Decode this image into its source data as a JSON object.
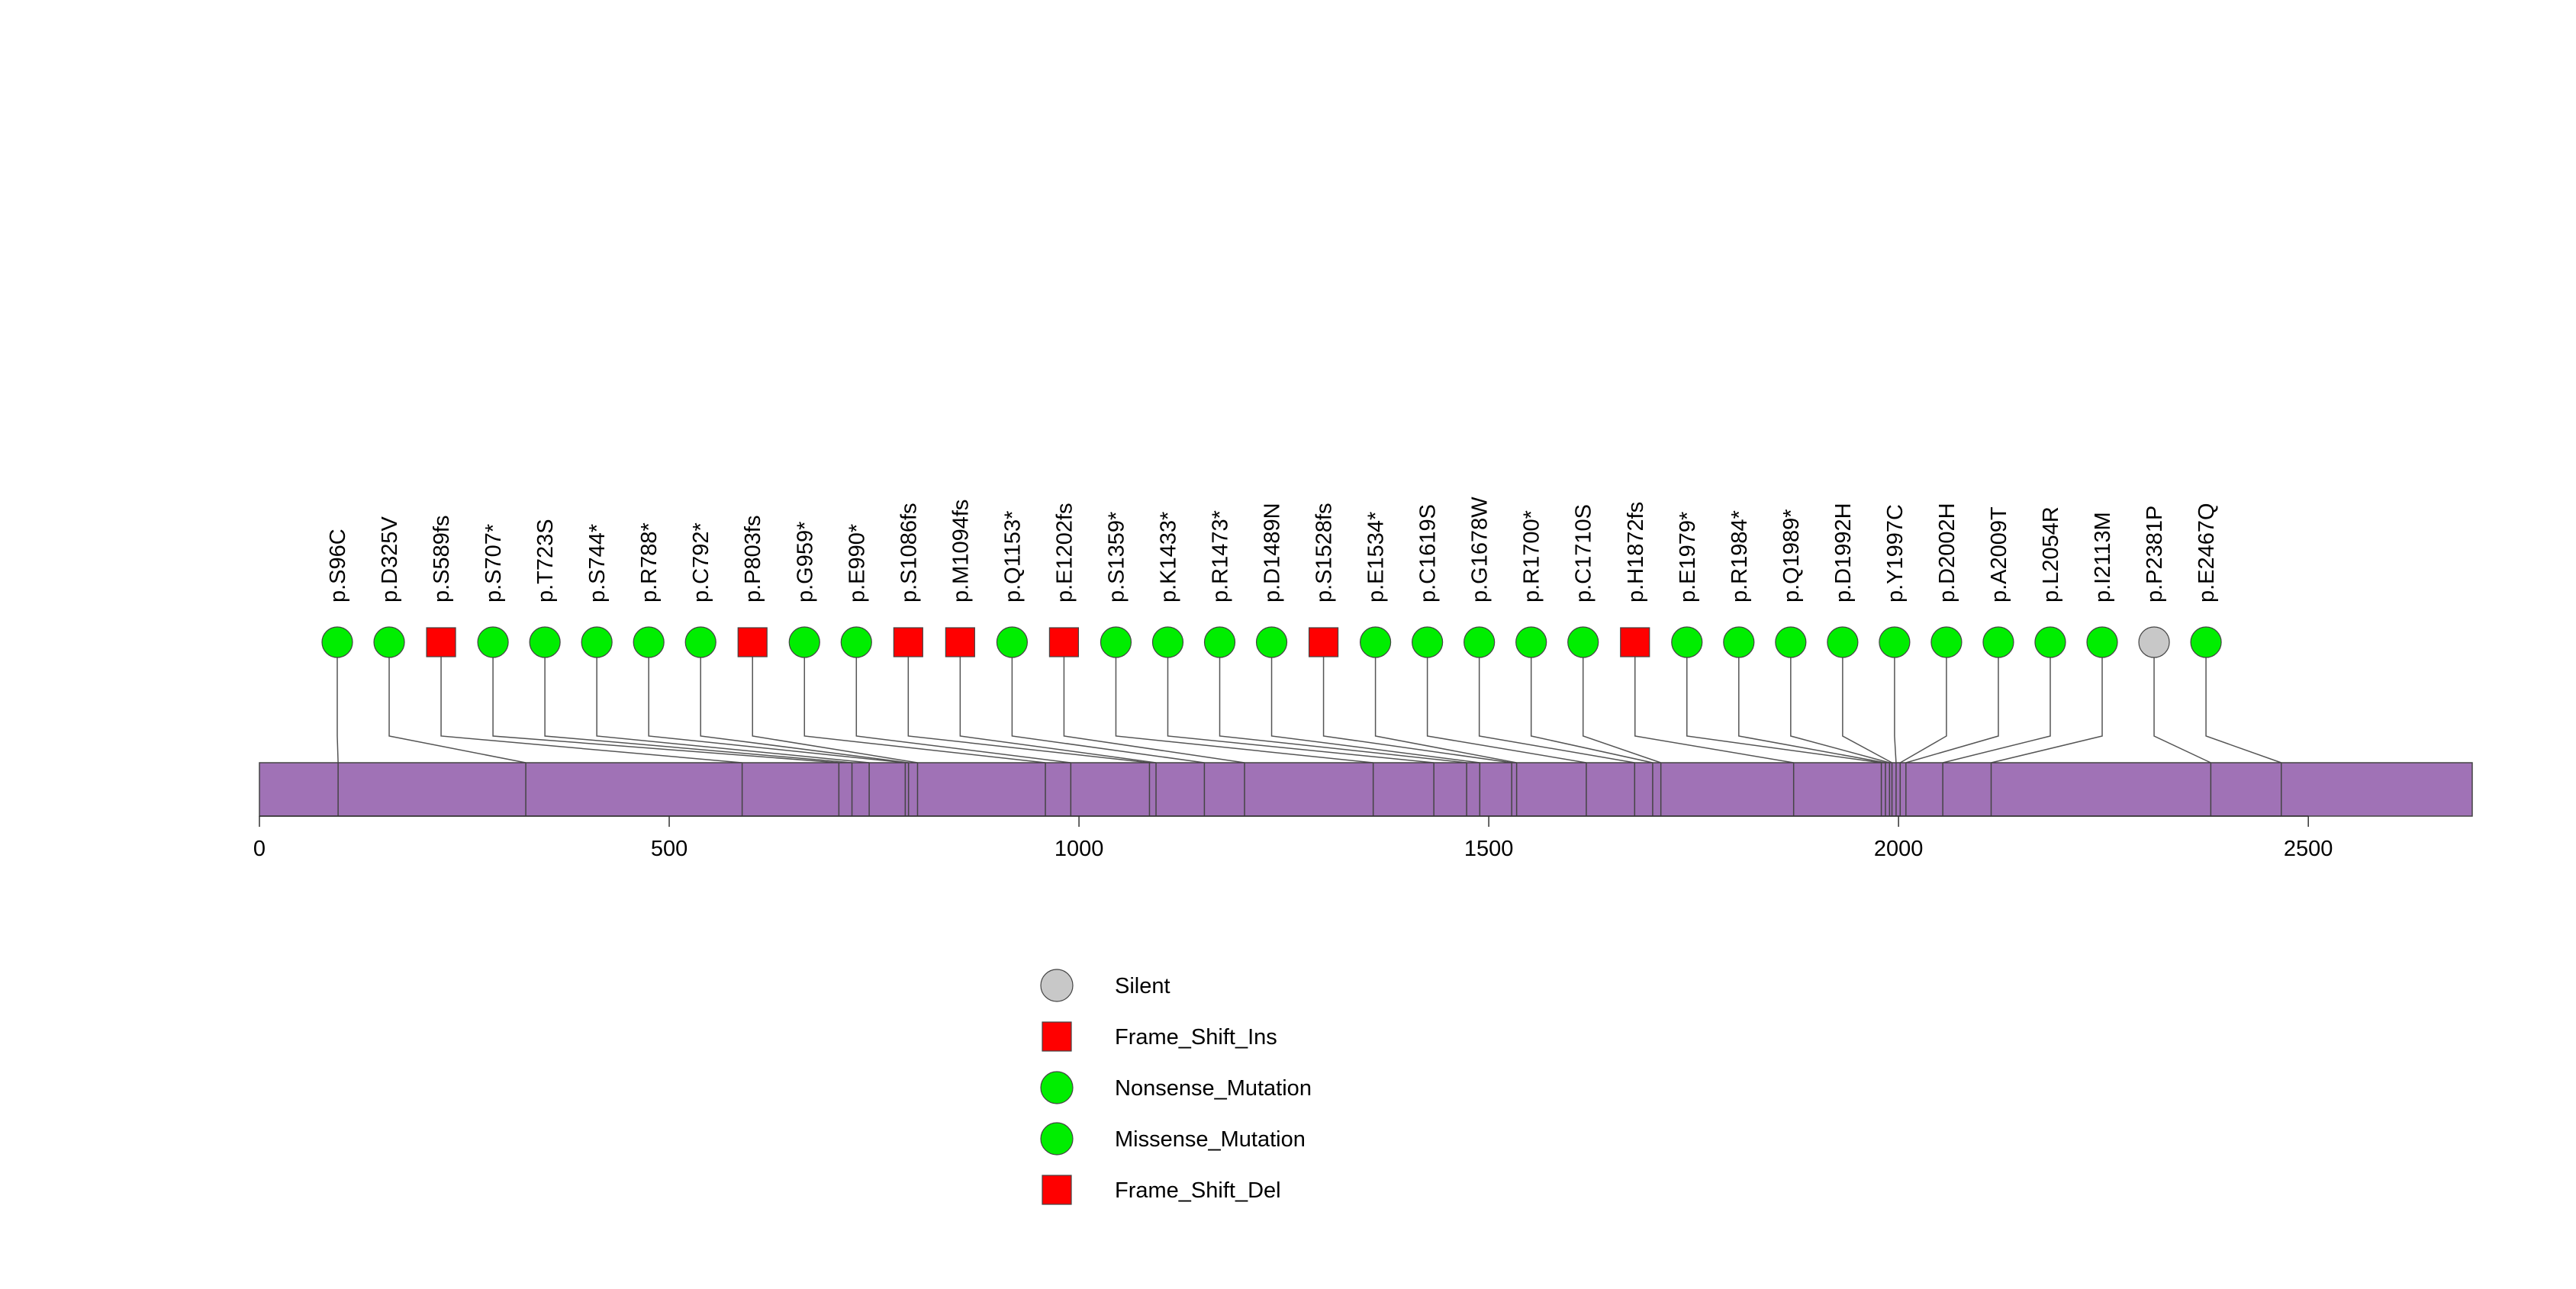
{
  "chart_data": {
    "type": "lollipop",
    "title": "",
    "xlabel": "",
    "ylabel": "",
    "xlim": [
      0,
      2700
    ],
    "ticks": [
      0,
      500,
      1000,
      1500,
      2000,
      2500
    ],
    "tick_labels": [
      "0",
      "500",
      "1000",
      "1500",
      "2000",
      "2500"
    ],
    "protein_length": 2700,
    "domain_color": "#a072b6",
    "legend": [
      {
        "label": "Silent",
        "shape": "circle",
        "color": "#c8c8c8"
      },
      {
        "label": "Frame_Shift_Ins",
        "shape": "square",
        "color": "#ff0000"
      },
      {
        "label": "Nonsense_Mutation",
        "shape": "circle",
        "color": "#00ee00"
      },
      {
        "label": "Missense_Mutation",
        "shape": "circle",
        "color": "#00ee00"
      },
      {
        "label": "Frame_Shift_Del",
        "shape": "square",
        "color": "#ff0000"
      }
    ],
    "mutations": [
      {
        "label": "p.S96C",
        "position": 96,
        "type": "Missense_Mutation"
      },
      {
        "label": "p.D325V",
        "position": 325,
        "type": "Missense_Mutation"
      },
      {
        "label": "p.S589fs",
        "position": 589,
        "type": "Frame_Shift_Del"
      },
      {
        "label": "p.S707*",
        "position": 707,
        "type": "Nonsense_Mutation"
      },
      {
        "label": "p.T723S",
        "position": 723,
        "type": "Missense_Mutation"
      },
      {
        "label": "p.S744*",
        "position": 744,
        "type": "Nonsense_Mutation"
      },
      {
        "label": "p.R788*",
        "position": 788,
        "type": "Nonsense_Mutation"
      },
      {
        "label": "p.C792*",
        "position": 792,
        "type": "Nonsense_Mutation"
      },
      {
        "label": "p.P803fs",
        "position": 803,
        "type": "Frame_Shift_Ins"
      },
      {
        "label": "p.G959*",
        "position": 959,
        "type": "Nonsense_Mutation"
      },
      {
        "label": "p.E990*",
        "position": 990,
        "type": "Nonsense_Mutation"
      },
      {
        "label": "p.S1086fs",
        "position": 1086,
        "type": "Frame_Shift_Del"
      },
      {
        "label": "p.M1094fs",
        "position": 1094,
        "type": "Frame_Shift_Del"
      },
      {
        "label": "p.Q1153*",
        "position": 1153,
        "type": "Nonsense_Mutation"
      },
      {
        "label": "p.E1202fs",
        "position": 1202,
        "type": "Frame_Shift_Del"
      },
      {
        "label": "p.S1359*",
        "position": 1359,
        "type": "Nonsense_Mutation"
      },
      {
        "label": "p.K1433*",
        "position": 1433,
        "type": "Nonsense_Mutation"
      },
      {
        "label": "p.R1473*",
        "position": 1473,
        "type": "Nonsense_Mutation"
      },
      {
        "label": "p.D1489N",
        "position": 1489,
        "type": "Missense_Mutation"
      },
      {
        "label": "p.S1528fs",
        "position": 1528,
        "type": "Frame_Shift_Del"
      },
      {
        "label": "p.E1534*",
        "position": 1534,
        "type": "Nonsense_Mutation"
      },
      {
        "label": "p.C1619S",
        "position": 1619,
        "type": "Missense_Mutation"
      },
      {
        "label": "p.G1678W",
        "position": 1678,
        "type": "Missense_Mutation"
      },
      {
        "label": "p.R1700*",
        "position": 1700,
        "type": "Nonsense_Mutation"
      },
      {
        "label": "p.C1710S",
        "position": 1710,
        "type": "Missense_Mutation"
      },
      {
        "label": "p.H1872fs",
        "position": 1872,
        "type": "Frame_Shift_Del"
      },
      {
        "label": "p.E1979*",
        "position": 1979,
        "type": "Nonsense_Mutation"
      },
      {
        "label": "p.R1984*",
        "position": 1984,
        "type": "Nonsense_Mutation"
      },
      {
        "label": "p.Q1989*",
        "position": 1989,
        "type": "Nonsense_Mutation"
      },
      {
        "label": "p.D1992H",
        "position": 1992,
        "type": "Missense_Mutation"
      },
      {
        "label": "p.Y1997C",
        "position": 1997,
        "type": "Missense_Mutation"
      },
      {
        "label": "p.D2002H",
        "position": 2002,
        "type": "Missense_Mutation"
      },
      {
        "label": "p.A2009T",
        "position": 2009,
        "type": "Missense_Mutation"
      },
      {
        "label": "p.L2054R",
        "position": 2054,
        "type": "Missense_Mutation"
      },
      {
        "label": "p.I2113M",
        "position": 2113,
        "type": "Missense_Mutation"
      },
      {
        "label": "p.P2381P",
        "position": 2381,
        "type": "Silent"
      },
      {
        "label": "p.E2467Q",
        "position": 2467,
        "type": "Missense_Mutation"
      }
    ]
  }
}
